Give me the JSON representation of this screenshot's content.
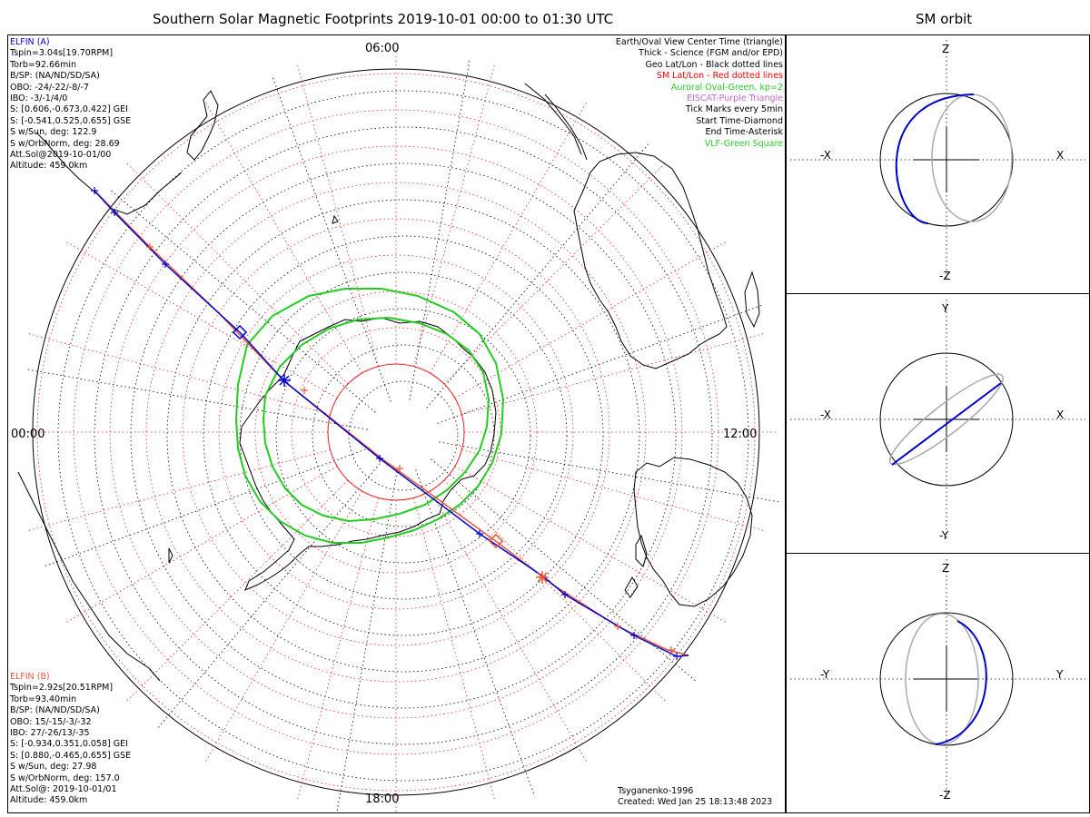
{
  "main_title": "Southern Solar Magnetic Footprints 2019-10-01 00:00 to 01:30 UTC",
  "orbit_title": "SM orbit",
  "map": {
    "mlt_labels": {
      "top": "06:00",
      "left": "00:00",
      "right": "12:00",
      "bottom": "18:00"
    }
  },
  "elfin_a": {
    "header": "ELFIN (A)",
    "lines": [
      "Tspin=3.04s[19.70RPM]",
      "Torb=92.66min",
      "B/SP: (NA/ND/SD/SA)",
      "OBO: -24/-22/-8/-7",
      "IBO: -3/-1/4/0",
      "S: [0.606,-0.673,0.422] GEI",
      "S: [-0.541,0.525,0.655] GSE",
      "S w/Sun, deg: 122.9",
      "S w/OrbNorm, deg: 28.69",
      "Att.Sol@2019-10-01/00",
      "Altitude: 459.0km"
    ],
    "color": "#0000cc"
  },
  "elfin_b": {
    "header": "ELFIN (B)",
    "lines": [
      "Tspin=2.92s[20.51RPM]",
      "Torb=93.40min",
      "B/SP: (NA/ND/SD/SA)",
      "OBO: 15/-15/-3/-32",
      "IBO: 27/-26/13/-35",
      "S: [-0.934,0.351,0.058] GEI",
      "S: [0.880,-0.465,0.655] GSE",
      "S w/Sun, deg: 27.98",
      "S w/OrbNorm, deg: 157.0",
      "Att.Sol@: 2019-10-01/01",
      "Altitude: 459.0km"
    ],
    "color": "#e8553a"
  },
  "legend": [
    {
      "text": "Earth/Oval View Center Time (triangle)",
      "color": "#000000"
    },
    {
      "text": "Thick - Science (FGM and/or EPD)",
      "color": "#000000"
    },
    {
      "text": "Geo Lat/Lon - Black dotted lines",
      "color": "#000000"
    },
    {
      "text": "SM Lat/Lon - Red dotted lines",
      "color": "#ff0000"
    },
    {
      "text": "Auroral Oval-Green, kp=2",
      "color": "#22cc22"
    },
    {
      "text": "EISCAT-Purple Triangle",
      "color": "#cc66cc"
    },
    {
      "text": "Tick Marks every 5min",
      "color": "#000000"
    },
    {
      "text": "Start Time-Diamond",
      "color": "#000000"
    },
    {
      "text": "End Time-Asterisk",
      "color": "#000000"
    },
    {
      "text": "VLF-Green Square",
      "color": "#22cc22"
    }
  ],
  "credits": [
    "Tsyganenko-1996",
    "Created: Wed Jan 25 18:13:48 2023"
  ],
  "orbit_panels": [
    {
      "top": "Z",
      "bottom": "-Z",
      "left": "-X",
      "right": "X"
    },
    {
      "top": "Y",
      "bottom": "-Y",
      "left": "-X",
      "right": "X"
    },
    {
      "top": "Z",
      "bottom": "-Z",
      "left": "-Y",
      "right": "Y"
    }
  ]
}
